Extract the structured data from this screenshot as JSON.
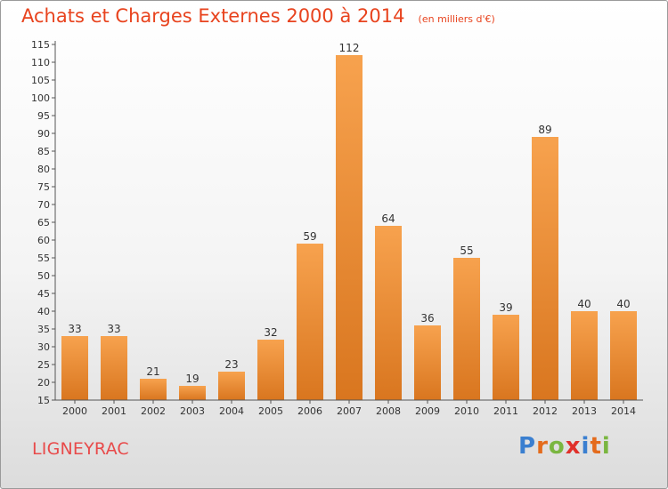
{
  "header": {
    "title": "Achats et Charges Externes 2000 à 2014",
    "subtitle": "(en milliers d'€)"
  },
  "footer": {
    "commune": "LIGNEYRAC",
    "logo_letters": [
      "P",
      "r",
      "o",
      "x",
      "i",
      "t",
      "i"
    ],
    "logo_colors": [
      "#3a7fd0",
      "#e46b1c",
      "#7ab640",
      "#e0302a",
      "#3a7fd0",
      "#e46b1c",
      "#7ab640"
    ]
  },
  "colors": {
    "bar_light": "#f7a24e",
    "bar_dark": "#d9761f",
    "title": "#e8431e",
    "axis": "#555555"
  },
  "chart_data": {
    "type": "bar",
    "categories": [
      "2000",
      "2001",
      "2002",
      "2003",
      "2004",
      "2005",
      "2006",
      "2007",
      "2008",
      "2009",
      "2010",
      "2011",
      "2012",
      "2013",
      "2014"
    ],
    "values": [
      33,
      33,
      21,
      19,
      23,
      32,
      59,
      112,
      64,
      36,
      55,
      39,
      89,
      40,
      40
    ],
    "ylim": [
      15,
      115
    ],
    "yticks": [
      15,
      20,
      25,
      30,
      35,
      40,
      45,
      50,
      55,
      60,
      65,
      70,
      75,
      80,
      85,
      90,
      95,
      100,
      105,
      110,
      115
    ],
    "grid": false,
    "title": "Achats et Charges Externes 2000 à 2014",
    "xlabel": "",
    "ylabel": ""
  }
}
